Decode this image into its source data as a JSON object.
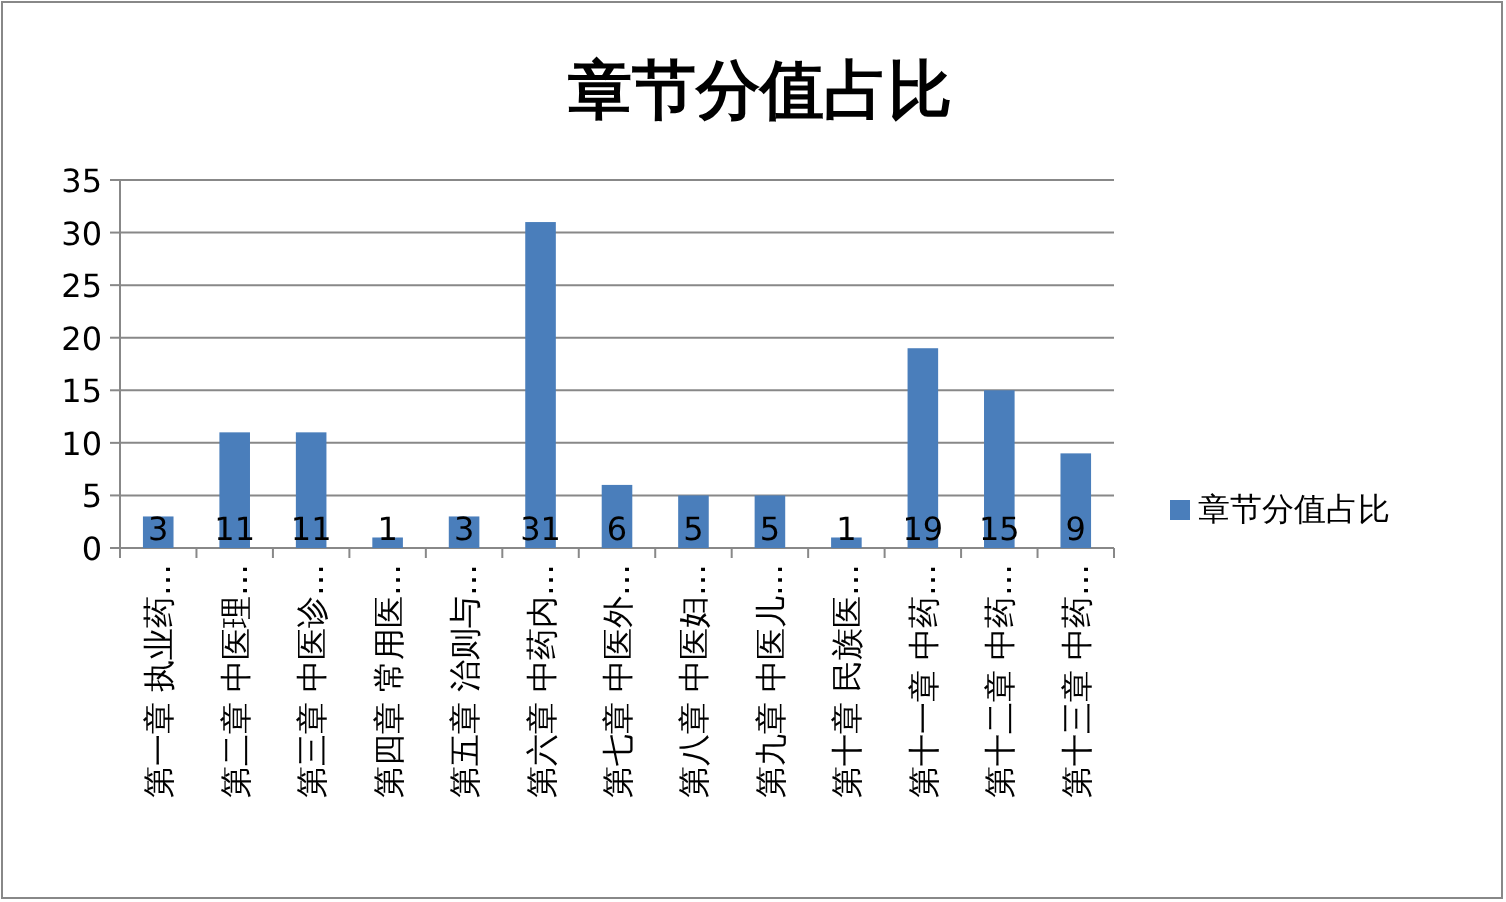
{
  "chart_data": {
    "type": "bar",
    "title": "章节分值占比",
    "categories": [
      "第一章 执业药…",
      "第二章 中医理…",
      "第三章 中医诊…",
      "第四章 常用医…",
      "第五章 治则与…",
      "第六章 中药内…",
      "第七章 中医外…",
      "第八章 中医妇…",
      "第九章 中医儿…",
      "第十章 民族医…",
      "第十一章 中药…",
      "第十二章 中药…",
      "第十三章 中药…"
    ],
    "series": [
      {
        "name": "章节分值占比",
        "color": "#4a7ebb",
        "values": [
          3,
          11,
          11,
          1,
          3,
          31,
          6,
          5,
          5,
          1,
          19,
          15,
          9
        ]
      }
    ],
    "ylim": [
      0,
      35
    ],
    "yticks": [
      0,
      5,
      10,
      15,
      20,
      25,
      30,
      35
    ],
    "grid": "y",
    "legend": "right",
    "data_labels": true
  }
}
